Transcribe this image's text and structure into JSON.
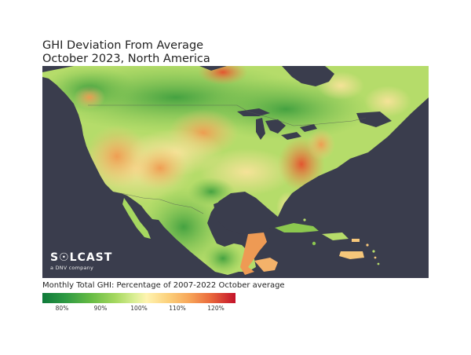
{
  "title": {
    "line1": "GHI Deviation From Average",
    "line2": "October 2023, North America"
  },
  "logo": {
    "name": "S☉LCAST",
    "tagline": "a DNV company"
  },
  "legend": {
    "title": "Monthly Total GHI: Percentage of 2007-2022 October average",
    "ticks": [
      "80%",
      "90%",
      "100%",
      "110%",
      "120%"
    ],
    "colors": [
      "#0f7a3a",
      "#66bb44",
      "#dcef96",
      "#fff3b0",
      "#f7a659",
      "#c3122a"
    ]
  }
}
